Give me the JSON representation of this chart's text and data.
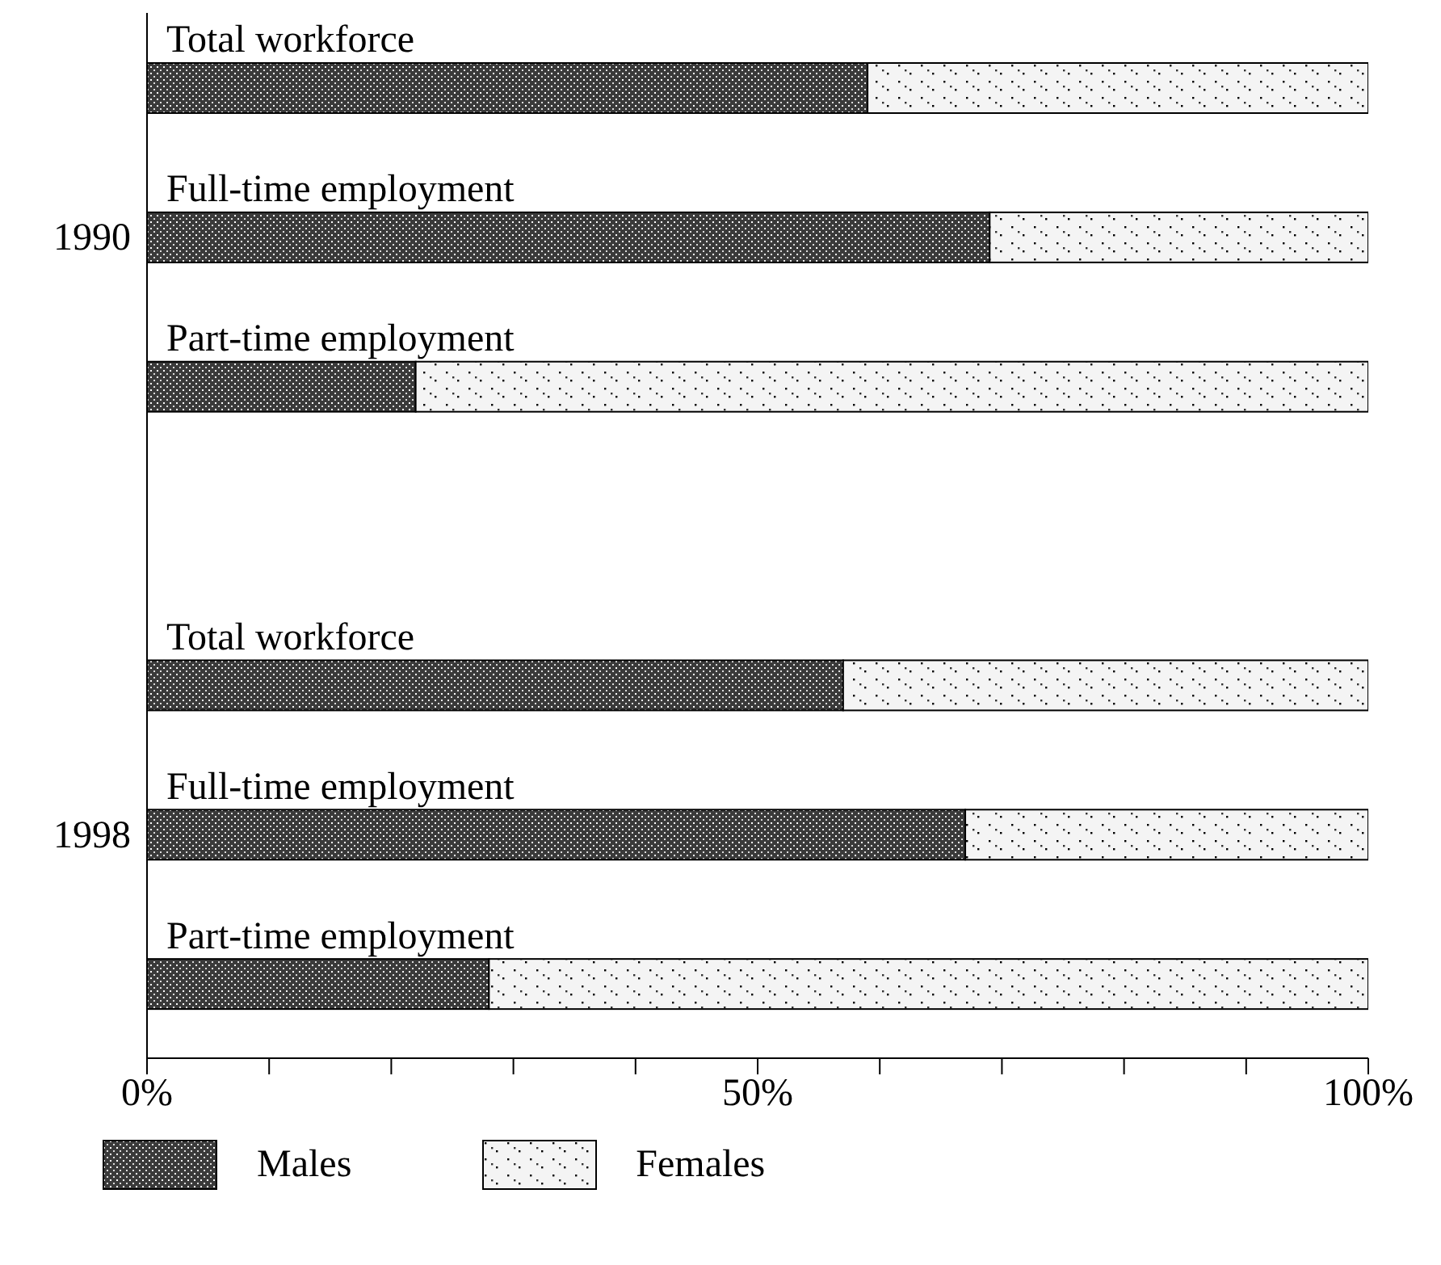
{
  "chart_data": {
    "type": "bar",
    "orientation": "horizontal",
    "stacked": true,
    "categories": [
      "Total workforce",
      "Full-time employment",
      "Part-time employment",
      null,
      "Total workforce",
      "Full-time employment",
      "Part-time employment"
    ],
    "series": [
      {
        "name": "Males",
        "color": "#3a3a3a",
        "values": [
          59,
          69,
          22,
          null,
          57,
          67,
          28
        ]
      },
      {
        "name": "Females",
        "color": "#f4f4f4",
        "values": [
          41,
          31,
          78,
          null,
          43,
          33,
          72
        ]
      }
    ],
    "xlim": [
      0,
      100
    ],
    "xticks": [
      {
        "value": 0,
        "label": "0%"
      },
      {
        "value": 10,
        "label": null
      },
      {
        "value": 20,
        "label": null
      },
      {
        "value": 30,
        "label": null
      },
      {
        "value": 40,
        "label": null
      },
      {
        "value": 50,
        "label": "50%"
      },
      {
        "value": 60,
        "label": null
      },
      {
        "value": 70,
        "label": null
      },
      {
        "value": 80,
        "label": null
      },
      {
        "value": 90,
        "label": null
      },
      {
        "value": 100,
        "label": "100%"
      }
    ],
    "annotations": [
      "1990",
      "1998"
    ],
    "legend": "bottom"
  }
}
